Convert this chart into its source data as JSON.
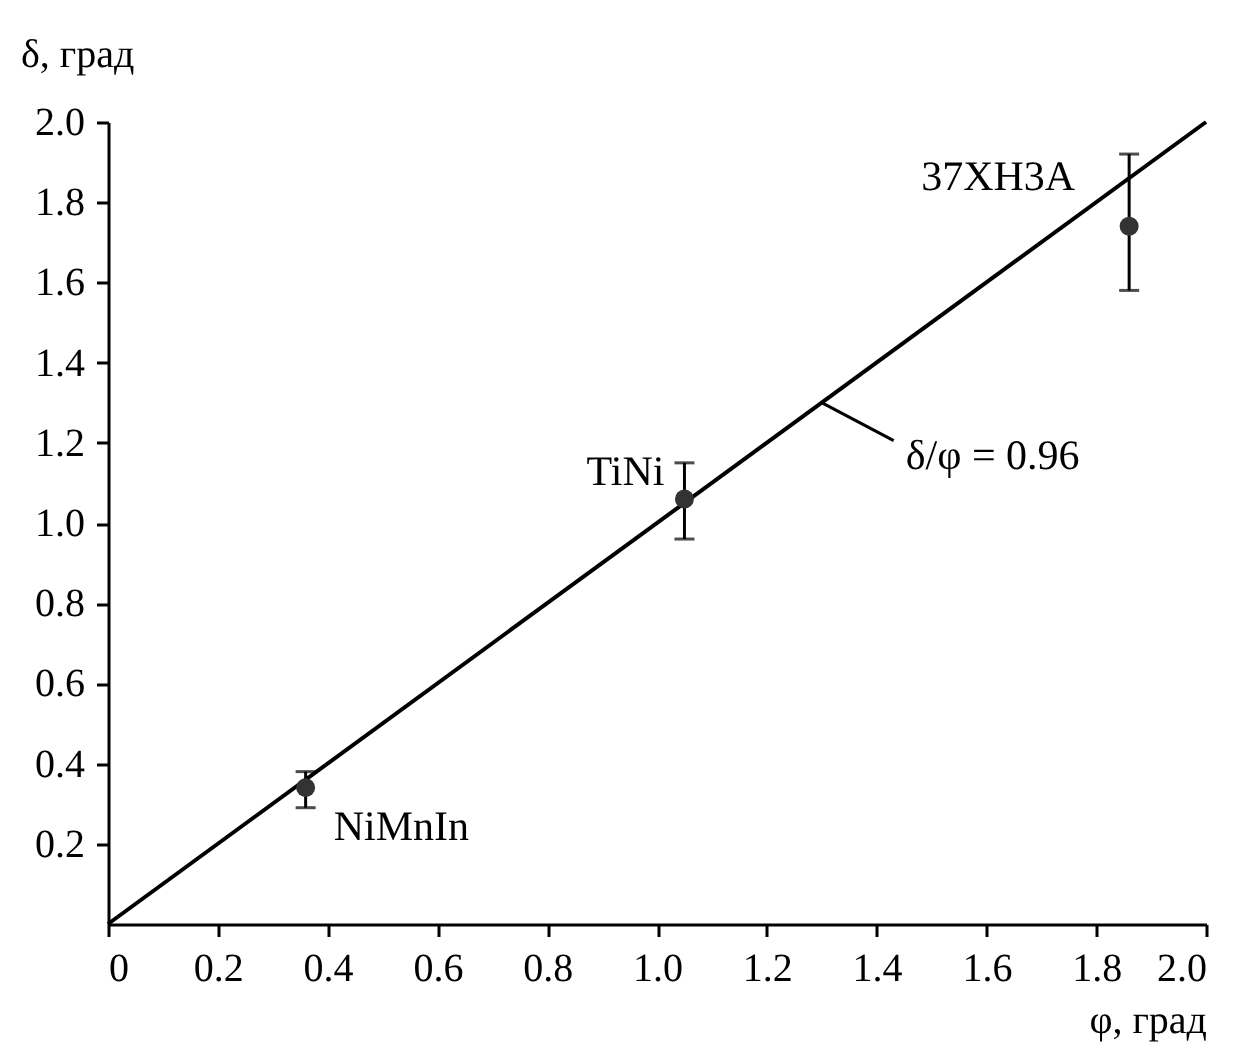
{
  "chart_data": {
    "type": "scatter",
    "xlabel": "φ, град",
    "ylabel": "δ, град",
    "xlim": [
      0,
      2.0
    ],
    "ylim": [
      0,
      2.0
    ],
    "grid": false,
    "xticks": [
      {
        "value": 0,
        "label": "0"
      },
      {
        "value": 0.2,
        "label": "0.2"
      },
      {
        "value": 0.4,
        "label": "0.4"
      },
      {
        "value": 0.6,
        "label": "0.6"
      },
      {
        "value": 0.8,
        "label": "0.8"
      },
      {
        "value": 1.0,
        "label": "1.0"
      },
      {
        "value": 1.2,
        "label": "1.2"
      },
      {
        "value": 1.4,
        "label": "1.4"
      },
      {
        "value": 1.6,
        "label": "1.6"
      },
      {
        "value": 1.8,
        "label": "1.8"
      },
      {
        "value": 2.0,
        "label": "2.0"
      }
    ],
    "yticks": [
      {
        "value": 0.2,
        "label": "0.2"
      },
      {
        "value": 0.4,
        "label": "0.4"
      },
      {
        "value": 0.6,
        "label": "0.6"
      },
      {
        "value": 0.8,
        "label": "0.8"
      },
      {
        "value": 1.0,
        "label": "1.0"
      },
      {
        "value": 1.2,
        "label": "1.2"
      },
      {
        "value": 1.4,
        "label": "1.4"
      },
      {
        "value": 1.6,
        "label": "1.6"
      },
      {
        "value": 1.8,
        "label": "1.8"
      },
      {
        "value": 2.0,
        "label": "2.0"
      }
    ],
    "series": [
      {
        "marker": "circle",
        "color": "#333333",
        "x": [
          0.36,
          1.05,
          1.86
        ],
        "values": [
          0.34,
          1.06,
          1.74
        ],
        "errors": [
          [
            0.29,
            0.38
          ],
          [
            0.96,
            1.15
          ],
          [
            1.58,
            1.92
          ]
        ]
      },
      {
        "type": "line",
        "marker": "none",
        "line_style": "solid",
        "color": "#000000",
        "x": [
          0,
          2.0
        ],
        "values": [
          0,
          2.0
        ]
      }
    ],
    "annotations": [
      {
        "text": "NiMnIn",
        "x": 0.36,
        "y": 0.34
      },
      {
        "text": "TiNi",
        "x": 1.05,
        "y": 1.06
      },
      {
        "text": "37ХН3А",
        "x": 1.86,
        "y": 1.74
      },
      {
        "text": "δ/φ = 0.96",
        "x": 1.3,
        "y": 1.3
      }
    ]
  }
}
